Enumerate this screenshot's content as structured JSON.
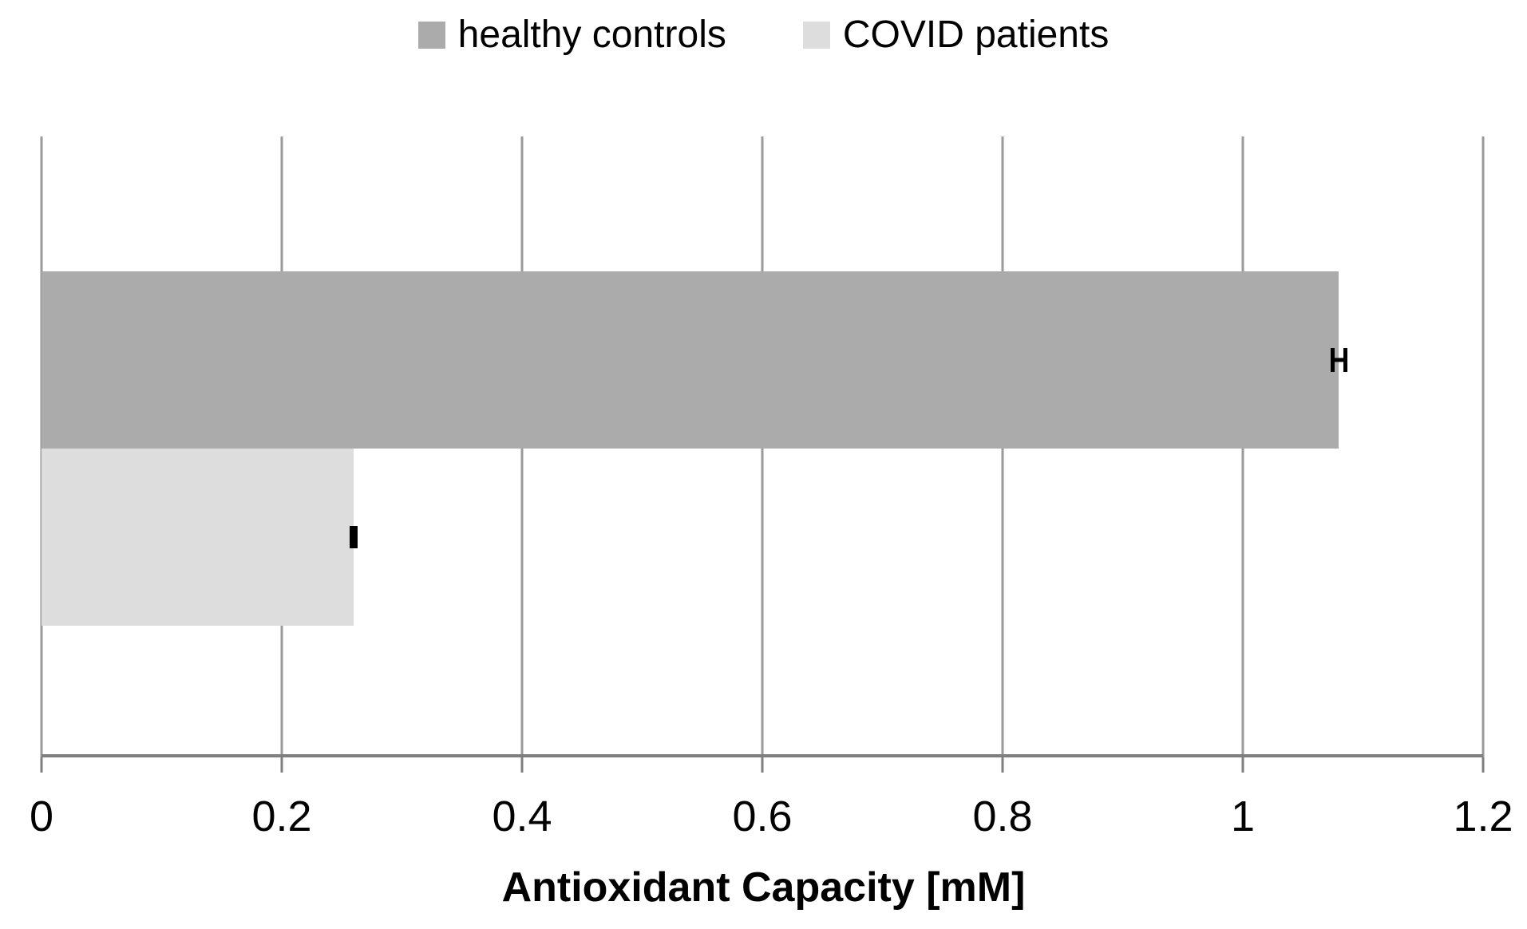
{
  "legend": {
    "position": "top-center",
    "items": [
      {
        "label": "healthy controls",
        "color": "#ABABAB"
      },
      {
        "label": "COVID patients",
        "color": "#DDDDDD"
      }
    ]
  },
  "chart_data": {
    "type": "bar",
    "orientation": "horizontal",
    "title": "",
    "xlabel": "Antioxidant Capacity [mM]",
    "ylabel": "",
    "xlim": [
      0,
      1.2
    ],
    "x_ticks": [
      0,
      0.2,
      0.4,
      0.6,
      0.8,
      1,
      1.2
    ],
    "x_tick_labels": [
      "0",
      "0.2",
      "0.4",
      "0.6",
      "0.8",
      "1",
      "1.2"
    ],
    "grid": "vertical gridlines every 0.2",
    "legend_position": "top-center",
    "categories": [
      "Antioxidant Capacity"
    ],
    "series": [
      {
        "name": "healthy controls",
        "values": [
          1.08
        ],
        "error": [
          0.007
        ],
        "color": "#ABABAB"
      },
      {
        "name": "COVID patients",
        "values": [
          0.26
        ],
        "error": [
          0.003
        ],
        "color": "#DDDDDD"
      }
    ]
  },
  "colors": {
    "gridline": "#9A9A9A",
    "axis_line": "#7F7F7F",
    "error_bar": "#000000",
    "background": "#FFFFFF"
  }
}
